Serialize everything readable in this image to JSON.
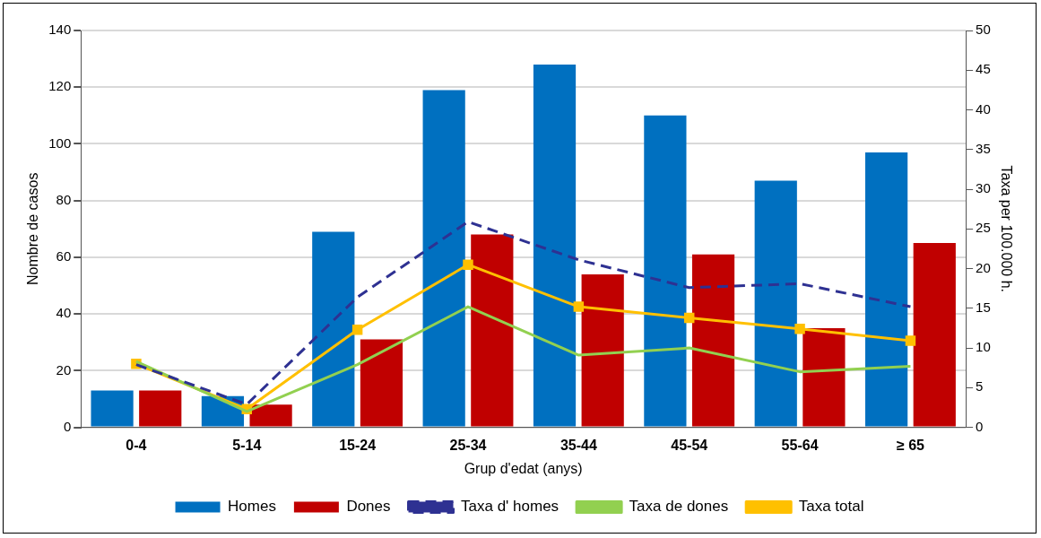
{
  "chart_data": {
    "type": "bar",
    "xlabel": "Grup d'edat (anys)",
    "ylabel": "Nombre de casos",
    "y2label": "Taxa per 100.000 h.",
    "categories": [
      "0-4",
      "5-14",
      "15-24",
      "25-34",
      "35-44",
      "45-54",
      "55-64",
      "≥ 65"
    ],
    "series": [
      {
        "name": "Homes",
        "color": "#0070c0",
        "values": [
          13,
          11,
          69,
          119,
          128,
          110,
          87,
          97
        ]
      },
      {
        "name": "Dones",
        "color": "#c00000",
        "values": [
          13,
          8,
          31,
          68,
          54,
          61,
          35,
          65
        ]
      },
      {
        "name": "Taxa d' homes",
        "type": "line",
        "axis": "y2",
        "color": "#2e3192",
        "line_style": "dashed",
        "marker": "none",
        "values": [
          7.9,
          2.9,
          16.4,
          25.9,
          21.1,
          17.6,
          18.1,
          15.2
        ]
      },
      {
        "name": "Taxa de dones",
        "type": "line",
        "axis": "y2",
        "color": "#92d050",
        "line_style": "solid",
        "marker": "none",
        "values": [
          8.3,
          2.0,
          7.9,
          15.2,
          9.1,
          10.0,
          7.0,
          7.7
        ]
      },
      {
        "name": "Taxa total",
        "type": "line",
        "axis": "y2",
        "color": "#ffc000",
        "line_style": "solid",
        "marker": "square",
        "values": [
          8.0,
          2.3,
          12.3,
          20.5,
          15.2,
          13.8,
          12.4,
          10.9
        ]
      }
    ],
    "ylim": [
      0,
      140
    ],
    "yticks": [
      0,
      20,
      40,
      60,
      80,
      100,
      120,
      140
    ],
    "y2lim": [
      0,
      50
    ],
    "y2ticks": [
      0,
      5,
      10,
      15,
      20,
      25,
      30,
      35,
      40,
      45,
      50
    ],
    "grid": "y",
    "legend": "bottom"
  }
}
